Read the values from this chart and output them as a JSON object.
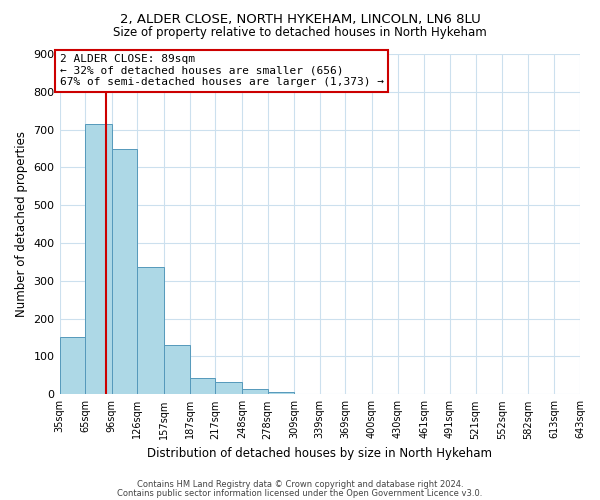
{
  "title1": "2, ALDER CLOSE, NORTH HYKEHAM, LINCOLN, LN6 8LU",
  "title2": "Size of property relative to detached houses in North Hykeham",
  "xlabel": "Distribution of detached houses by size in North Hykeham",
  "ylabel": "Number of detached properties",
  "bar_left_edges": [
    35,
    65,
    96,
    126,
    157,
    187,
    217,
    248,
    278,
    309,
    339,
    369,
    400,
    430,
    461,
    491,
    521,
    552,
    582,
    613
  ],
  "bar_widths": [
    30,
    31,
    30,
    31,
    30,
    30,
    31,
    30,
    31,
    30,
    30,
    31,
    30,
    31,
    30,
    30,
    31,
    30,
    31,
    30
  ],
  "bar_heights": [
    152,
    714,
    650,
    338,
    130,
    42,
    33,
    15,
    5,
    0,
    0,
    0,
    0,
    0,
    0,
    0,
    0,
    0,
    0,
    0
  ],
  "bar_color": "#add8e6",
  "bar_edge_color": "#5599bb",
  "xtick_labels": [
    "35sqm",
    "65sqm",
    "96sqm",
    "126sqm",
    "157sqm",
    "187sqm",
    "217sqm",
    "248sqm",
    "278sqm",
    "309sqm",
    "339sqm",
    "369sqm",
    "400sqm",
    "430sqm",
    "461sqm",
    "491sqm",
    "521sqm",
    "552sqm",
    "582sqm",
    "613sqm",
    "643sqm"
  ],
  "ylim": [
    0,
    900
  ],
  "yticks": [
    0,
    100,
    200,
    300,
    400,
    500,
    600,
    700,
    800,
    900
  ],
  "property_line_x": 89,
  "property_line_color": "#cc0000",
  "annotation_line1": "2 ALDER CLOSE: 89sqm",
  "annotation_line2": "← 32% of detached houses are smaller (656)",
  "annotation_line3": "67% of semi-detached houses are larger (1,373) →",
  "footer1": "Contains HM Land Registry data © Crown copyright and database right 2024.",
  "footer2": "Contains public sector information licensed under the Open Government Licence v3.0.",
  "background_color": "#ffffff",
  "grid_color": "#cce0ee"
}
